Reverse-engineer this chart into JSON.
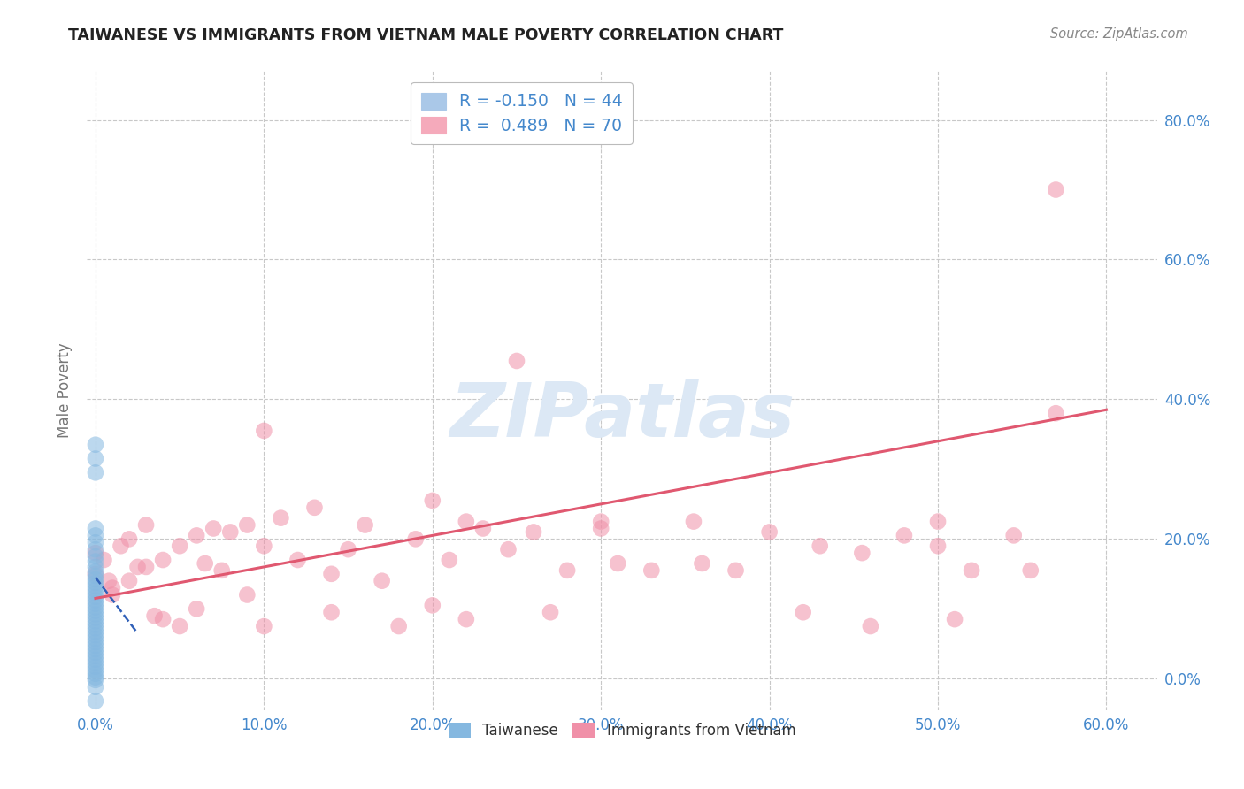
{
  "title": "TAIWANESE VS IMMIGRANTS FROM VIETNAM MALE POVERTY CORRELATION CHART",
  "source": "Source: ZipAtlas.com",
  "ylabel": "Male Poverty",
  "x_tick_values": [
    0.0,
    0.1,
    0.2,
    0.3,
    0.4,
    0.5,
    0.6
  ],
  "y_tick_values": [
    0.0,
    0.2,
    0.4,
    0.6,
    0.8
  ],
  "xlim": [
    -0.005,
    0.63
  ],
  "ylim": [
    -0.045,
    0.87
  ],
  "legend_entries": [
    {
      "label": "R = -0.150   N = 44",
      "color": "#aac8e8"
    },
    {
      "label": "R =  0.489   N = 70",
      "color": "#f5aabb"
    }
  ],
  "taiwanese_color": "#85b8e0",
  "vietnam_color": "#f090a8",
  "trend_taiwanese_color": "#3060b8",
  "trend_vietnam_color": "#e05870",
  "background_color": "#ffffff",
  "grid_color": "#c8c8c8",
  "axis_label_color": "#4488cc",
  "title_color": "#222222",
  "watermark_text": "ZIPatlas",
  "watermark_color": "#dce8f5",
  "taiwanese_x": [
    0.0,
    0.0,
    0.0,
    0.0,
    0.0,
    0.0,
    0.0,
    0.0,
    0.0,
    0.0,
    0.0,
    0.0,
    0.0,
    0.0,
    0.0,
    0.0,
    0.0,
    0.0,
    0.0,
    0.0,
    0.0,
    0.0,
    0.0,
    0.0,
    0.0,
    0.0,
    0.0,
    0.0,
    0.0,
    0.0,
    0.0,
    0.0,
    0.0,
    0.0,
    0.0,
    0.0,
    0.0,
    0.0,
    0.0,
    0.0,
    0.0,
    0.0,
    0.0,
    0.0
  ],
  "taiwanese_y": [
    0.335,
    0.315,
    0.295,
    0.215,
    0.205,
    0.195,
    0.185,
    0.175,
    0.168,
    0.16,
    0.153,
    0.147,
    0.142,
    0.137,
    0.132,
    0.127,
    0.122,
    0.117,
    0.112,
    0.107,
    0.102,
    0.097,
    0.092,
    0.087,
    0.082,
    0.077,
    0.072,
    0.067,
    0.062,
    0.057,
    0.052,
    0.047,
    0.042,
    0.037,
    0.032,
    0.027,
    0.022,
    0.017,
    0.012,
    0.007,
    0.002,
    -0.002,
    -0.012,
    -0.032
  ],
  "vietnam_x": [
    0.0,
    0.0,
    0.005,
    0.008,
    0.01,
    0.01,
    0.015,
    0.02,
    0.02,
    0.025,
    0.03,
    0.03,
    0.035,
    0.04,
    0.04,
    0.05,
    0.05,
    0.06,
    0.06,
    0.065,
    0.07,
    0.075,
    0.08,
    0.09,
    0.09,
    0.1,
    0.1,
    0.11,
    0.12,
    0.13,
    0.14,
    0.14,
    0.15,
    0.16,
    0.17,
    0.18,
    0.19,
    0.2,
    0.2,
    0.21,
    0.22,
    0.23,
    0.245,
    0.26,
    0.27,
    0.28,
    0.3,
    0.31,
    0.33,
    0.355,
    0.36,
    0.38,
    0.4,
    0.42,
    0.43,
    0.455,
    0.46,
    0.48,
    0.5,
    0.51,
    0.52,
    0.545,
    0.555,
    0.57,
    0.25,
    0.22,
    0.3,
    0.1,
    0.5,
    0.57
  ],
  "vietnam_y": [
    0.18,
    0.15,
    0.17,
    0.14,
    0.13,
    0.12,
    0.19,
    0.2,
    0.14,
    0.16,
    0.22,
    0.16,
    0.09,
    0.17,
    0.085,
    0.19,
    0.075,
    0.205,
    0.1,
    0.165,
    0.215,
    0.155,
    0.21,
    0.22,
    0.12,
    0.19,
    0.075,
    0.23,
    0.17,
    0.245,
    0.15,
    0.095,
    0.185,
    0.22,
    0.14,
    0.075,
    0.2,
    0.105,
    0.255,
    0.17,
    0.085,
    0.215,
    0.185,
    0.21,
    0.095,
    0.155,
    0.225,
    0.165,
    0.155,
    0.225,
    0.165,
    0.155,
    0.21,
    0.095,
    0.19,
    0.18,
    0.075,
    0.205,
    0.19,
    0.085,
    0.155,
    0.205,
    0.155,
    0.38,
    0.455,
    0.225,
    0.215,
    0.355,
    0.225,
    0.7
  ],
  "taiwan_trend_x": [
    0.0,
    0.025
  ],
  "taiwan_trend_y": [
    0.145,
    0.065
  ],
  "vietnam_trend_x": [
    0.0,
    0.6
  ],
  "vietnam_trend_y": [
    0.115,
    0.385
  ],
  "tw_scatter_size": 180,
  "vn_scatter_size": 180
}
